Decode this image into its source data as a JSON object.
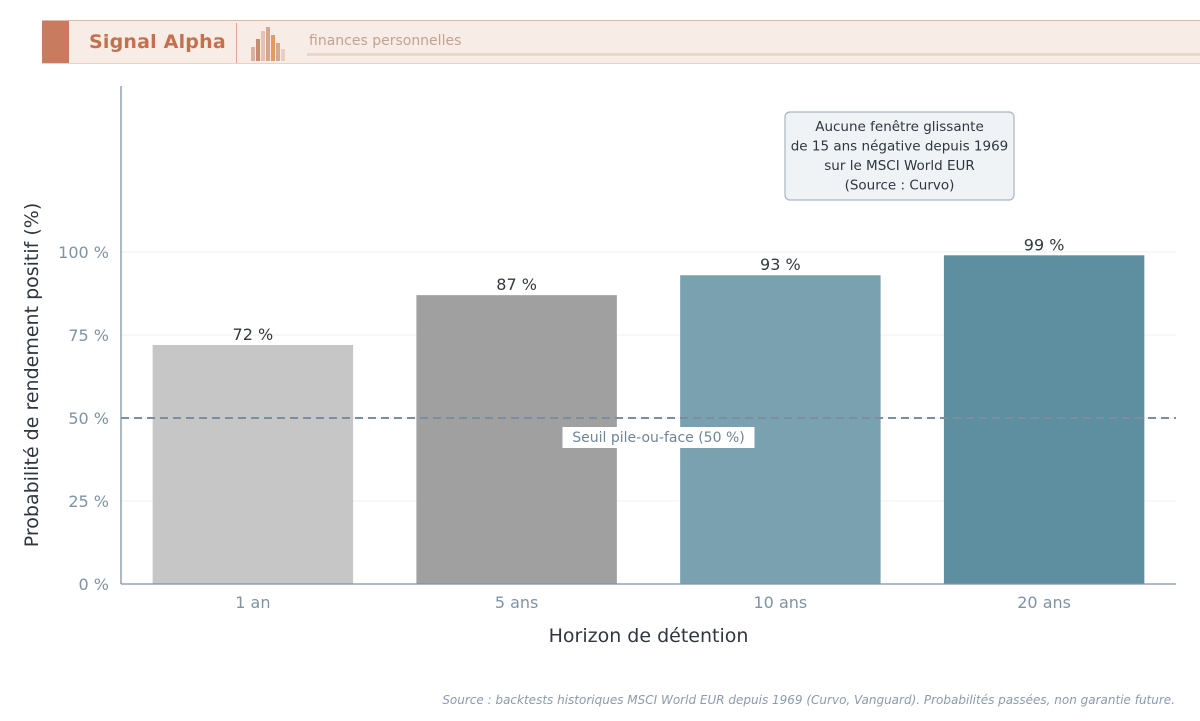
{
  "header": {
    "brand": "Signal Alpha",
    "tagline": "finances personnelles",
    "logo_icon": "bar-chart-icon",
    "colors": {
      "accent": "#c87b5e",
      "brand_text": "#c4704e",
      "background": "#f7ece6"
    }
  },
  "chart_data": {
    "type": "bar",
    "categories": [
      "1 an",
      "5 ans",
      "10 ans",
      "20 ans"
    ],
    "values": [
      72,
      87,
      93,
      99
    ],
    "value_labels": [
      "72 %",
      "87 %",
      "93 %",
      "99 %"
    ],
    "bar_colors": [
      "#c6c6c6",
      "#a0a0a0",
      "#7aa1b0",
      "#5d8fa0"
    ],
    "xlabel": "Horizon de détention",
    "ylabel": "Probabilité de rendement positif (%)",
    "ylim": [
      0,
      150
    ],
    "yticks": [
      0,
      25,
      50,
      75,
      100
    ],
    "ytick_labels": [
      "0 %",
      "25 %",
      "50 %",
      "75 %",
      "100 %"
    ],
    "grid": "horizontal",
    "reference_line": {
      "value": 50,
      "label": "Seuil pile-ou-face (50 %)",
      "style": "dashed",
      "color": "#7a8ea0"
    },
    "annotation": {
      "lines": [
        "Aucune fenêtre glissante",
        "de 15 ans négative depuis 1969",
        "sur le MSCI World EUR",
        "(Source : Curvo)"
      ],
      "placement": "top-right"
    }
  },
  "footer": {
    "source": "Source : backtests historiques MSCI World EUR depuis 1969 (Curvo, Vanguard). Probabilités passées, non garantie future."
  }
}
